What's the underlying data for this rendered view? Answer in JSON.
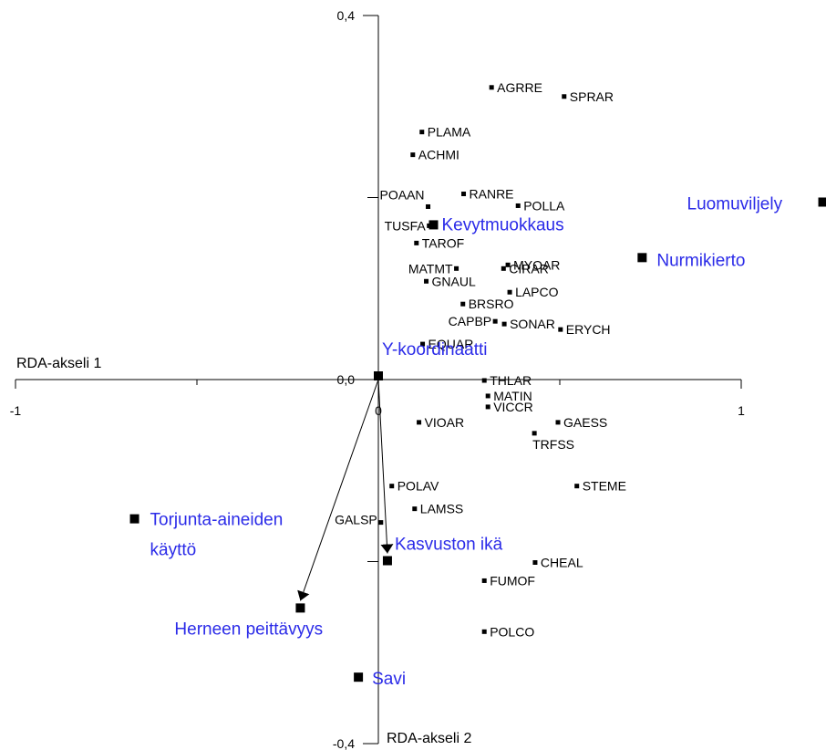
{
  "chart_data": {
    "type": "scatter",
    "xlabel": "RDA-akseli 1",
    "ylabel": "RDA-akseli 2",
    "xlim": [
      -1,
      1
    ],
    "ylim": [
      -0.4,
      0.4
    ],
    "x_ticks": [
      {
        "value": -1,
        "label": "-1"
      },
      {
        "value": 0,
        "label": "0"
      },
      {
        "value": 1,
        "label": "1"
      }
    ],
    "y_ticks": [
      {
        "value": 0.4,
        "label": "0,4"
      },
      {
        "value": 0.0,
        "label": "0,0"
      },
      {
        "value": -0.4,
        "label": "-0,4"
      }
    ],
    "species": [
      {
        "name": "AGRRE",
        "x": 0.312,
        "y": 0.321
      },
      {
        "name": "SPRAR",
        "x": 0.512,
        "y": 0.311
      },
      {
        "name": "PLAMA",
        "x": 0.12,
        "y": 0.272
      },
      {
        "name": "ACHMI",
        "x": 0.095,
        "y": 0.247
      },
      {
        "name": "RANRE",
        "x": 0.235,
        "y": 0.204
      },
      {
        "name": "POAAN",
        "x": 0.137,
        "y": 0.19
      },
      {
        "name": "POLLA",
        "x": 0.385,
        "y": 0.191
      },
      {
        "name": "TUSFA",
        "x": 0.14,
        "y": 0.169
      },
      {
        "name": "TAROF",
        "x": 0.105,
        "y": 0.15
      },
      {
        "name": "MYOAR",
        "x": 0.357,
        "y": 0.126
      },
      {
        "name": "CIRAR",
        "x": 0.345,
        "y": 0.122
      },
      {
        "name": "MATMT",
        "x": 0.215,
        "y": 0.122
      },
      {
        "name": "GNAUL",
        "x": 0.132,
        "y": 0.108
      },
      {
        "name": "LAPCO",
        "x": 0.362,
        "y": 0.096
      },
      {
        "name": "BRSRO",
        "x": 0.233,
        "y": 0.083
      },
      {
        "name": "CAPBP",
        "x": 0.322,
        "y": 0.064
      },
      {
        "name": "SONAR",
        "x": 0.347,
        "y": 0.061
      },
      {
        "name": "ERYCH",
        "x": 0.502,
        "y": 0.055
      },
      {
        "name": "EQUAR",
        "x": 0.122,
        "y": 0.039
      },
      {
        "name": "THLAR",
        "x": 0.292,
        "y": -0.001
      },
      {
        "name": "MATIN",
        "x": 0.302,
        "y": -0.018
      },
      {
        "name": "VICCR",
        "x": 0.302,
        "y": -0.03
      },
      {
        "name": "VIOAR",
        "x": 0.112,
        "y": -0.047
      },
      {
        "name": "GAESS",
        "x": 0.495,
        "y": -0.047
      },
      {
        "name": "TRFSS",
        "x": 0.43,
        "y": -0.059
      },
      {
        "name": "STEME",
        "x": 0.547,
        "y": -0.117
      },
      {
        "name": "POLAV",
        "x": 0.037,
        "y": -0.117
      },
      {
        "name": "LAMSS",
        "x": 0.1,
        "y": -0.142
      },
      {
        "name": "GALSP",
        "x": 0.007,
        "y": -0.157
      },
      {
        "name": "CHEAL",
        "x": 0.432,
        "y": -0.201
      },
      {
        "name": "FUMOF",
        "x": 0.292,
        "y": -0.221
      },
      {
        "name": "POLCO",
        "x": 0.292,
        "y": -0.277
      }
    ],
    "environment": [
      {
        "name": "Luomuviljely",
        "x": 1.225,
        "y": 0.195
      },
      {
        "name": "Nurmikierto",
        "x": 0.727,
        "y": 0.134
      },
      {
        "name": "Kevytmuokkaus",
        "x": 0.152,
        "y": 0.17
      },
      {
        "name": "Y-koordinaatti",
        "x": 0.0,
        "y": 0.004
      },
      {
        "name": "Torjunta-aineiden käyttö",
        "x": -0.672,
        "y": -0.153
      },
      {
        "name": "Kasvuston ikä",
        "x": 0.025,
        "y": -0.199,
        "arrow": true
      },
      {
        "name": "Herneen peittävyys",
        "x": -0.215,
        "y": -0.251,
        "arrow": true
      },
      {
        "name": "Savi",
        "x": -0.055,
        "y": -0.327
      }
    ]
  }
}
